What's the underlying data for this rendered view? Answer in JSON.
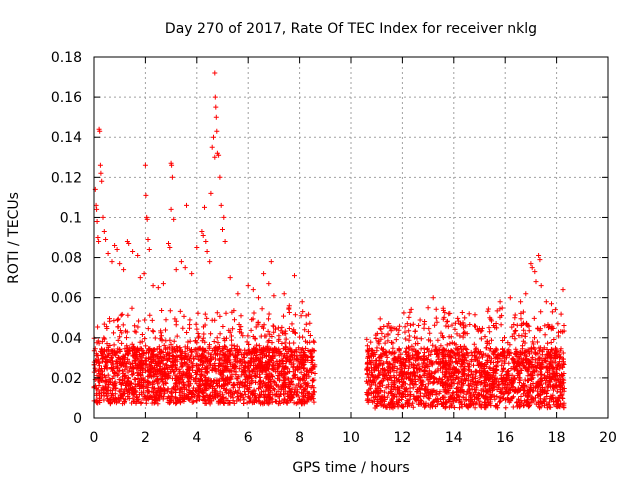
{
  "chart_data": {
    "type": "scatter",
    "title": "Day 270 of 2017, Rate Of TEC Index for receiver nklg",
    "xlabel": "GPS time / hours",
    "ylabel": "ROTI / TECUs",
    "xlim": [
      0,
      20
    ],
    "ylim": [
      0,
      0.18
    ],
    "xticks": [
      0,
      2,
      4,
      6,
      8,
      10,
      12,
      14,
      16,
      18,
      20
    ],
    "yticks": [
      0,
      0.02,
      0.04,
      0.06,
      0.08,
      0.1,
      0.12,
      0.14,
      0.16,
      0.18
    ],
    "xtick_labels": [
      "0",
      "2",
      "4",
      "6",
      "8",
      "10",
      "12",
      "14",
      "16",
      "18",
      "20"
    ],
    "ytick_labels": [
      "0",
      "0.02",
      "0.04",
      "0.06",
      "0.08",
      "0.1",
      "0.12",
      "0.14",
      "0.16",
      "0.18"
    ],
    "grid": true,
    "marker": "+",
    "series": [
      {
        "name": "ROTI",
        "color": "#ff0000",
        "segments": [
          {
            "x_start": 0.0,
            "x_end": 8.6,
            "typical_min": 0.007,
            "typical_max": 0.035
          },
          {
            "x_start": 10.6,
            "x_end": 18.3,
            "typical_min": 0.005,
            "typical_max": 0.035
          }
        ],
        "outliers": [
          {
            "x": 0.05,
            "y": 0.114
          },
          {
            "x": 0.08,
            "y": 0.106
          },
          {
            "x": 0.1,
            "y": 0.104
          },
          {
            "x": 0.12,
            "y": 0.098
          },
          {
            "x": 0.15,
            "y": 0.09
          },
          {
            "x": 0.18,
            "y": 0.088
          },
          {
            "x": 0.2,
            "y": 0.144
          },
          {
            "x": 0.22,
            "y": 0.143
          },
          {
            "x": 0.25,
            "y": 0.126
          },
          {
            "x": 0.27,
            "y": 0.122
          },
          {
            "x": 0.3,
            "y": 0.118
          },
          {
            "x": 0.35,
            "y": 0.1
          },
          {
            "x": 0.4,
            "y": 0.093
          },
          {
            "x": 0.45,
            "y": 0.089
          },
          {
            "x": 0.55,
            "y": 0.082
          },
          {
            "x": 0.7,
            "y": 0.078
          },
          {
            "x": 0.8,
            "y": 0.086
          },
          {
            "x": 0.9,
            "y": 0.084
          },
          {
            "x": 1.0,
            "y": 0.077
          },
          {
            "x": 1.15,
            "y": 0.074
          },
          {
            "x": 1.3,
            "y": 0.088
          },
          {
            "x": 1.35,
            "y": 0.087
          },
          {
            "x": 1.5,
            "y": 0.083
          },
          {
            "x": 1.7,
            "y": 0.081
          },
          {
            "x": 1.8,
            "y": 0.07
          },
          {
            "x": 1.95,
            "y": 0.072
          },
          {
            "x": 2.0,
            "y": 0.126
          },
          {
            "x": 2.02,
            "y": 0.111
          },
          {
            "x": 2.05,
            "y": 0.1
          },
          {
            "x": 2.07,
            "y": 0.099
          },
          {
            "x": 2.1,
            "y": 0.089
          },
          {
            "x": 2.15,
            "y": 0.084
          },
          {
            "x": 2.3,
            "y": 0.066
          },
          {
            "x": 2.5,
            "y": 0.065
          },
          {
            "x": 2.7,
            "y": 0.067
          },
          {
            "x": 2.9,
            "y": 0.087
          },
          {
            "x": 2.95,
            "y": 0.085
          },
          {
            "x": 3.0,
            "y": 0.127
          },
          {
            "x": 3.02,
            "y": 0.126
          },
          {
            "x": 3.05,
            "y": 0.12
          },
          {
            "x": 3.0,
            "y": 0.104
          },
          {
            "x": 3.1,
            "y": 0.099
          },
          {
            "x": 3.2,
            "y": 0.074
          },
          {
            "x": 3.4,
            "y": 0.078
          },
          {
            "x": 3.6,
            "y": 0.106
          },
          {
            "x": 3.55,
            "y": 0.075
          },
          {
            "x": 3.8,
            "y": 0.072
          },
          {
            "x": 4.0,
            "y": 0.085
          },
          {
            "x": 4.2,
            "y": 0.093
          },
          {
            "x": 4.25,
            "y": 0.091
          },
          {
            "x": 4.3,
            "y": 0.105
          },
          {
            "x": 4.35,
            "y": 0.088
          },
          {
            "x": 4.4,
            "y": 0.083
          },
          {
            "x": 4.5,
            "y": 0.078
          },
          {
            "x": 4.55,
            "y": 0.112
          },
          {
            "x": 4.6,
            "y": 0.135
          },
          {
            "x": 4.65,
            "y": 0.14
          },
          {
            "x": 4.7,
            "y": 0.172
          },
          {
            "x": 4.72,
            "y": 0.16
          },
          {
            "x": 4.74,
            "y": 0.155
          },
          {
            "x": 4.76,
            "y": 0.15
          },
          {
            "x": 4.78,
            "y": 0.143
          },
          {
            "x": 4.7,
            "y": 0.13
          },
          {
            "x": 4.8,
            "y": 0.132
          },
          {
            "x": 4.85,
            "y": 0.131
          },
          {
            "x": 4.9,
            "y": 0.12
          },
          {
            "x": 4.95,
            "y": 0.106
          },
          {
            "x": 5.0,
            "y": 0.094
          },
          {
            "x": 5.05,
            "y": 0.1
          },
          {
            "x": 5.1,
            "y": 0.088
          },
          {
            "x": 5.3,
            "y": 0.07
          },
          {
            "x": 5.6,
            "y": 0.062
          },
          {
            "x": 6.0,
            "y": 0.066
          },
          {
            "x": 6.2,
            "y": 0.064
          },
          {
            "x": 6.4,
            "y": 0.06
          },
          {
            "x": 6.6,
            "y": 0.072
          },
          {
            "x": 6.8,
            "y": 0.067
          },
          {
            "x": 6.9,
            "y": 0.078
          },
          {
            "x": 7.0,
            "y": 0.061
          },
          {
            "x": 7.4,
            "y": 0.062
          },
          {
            "x": 7.6,
            "y": 0.056
          },
          {
            "x": 7.8,
            "y": 0.071
          },
          {
            "x": 8.1,
            "y": 0.058
          },
          {
            "x": 8.2,
            "y": 0.044
          },
          {
            "x": 13.2,
            "y": 0.06
          },
          {
            "x": 13.0,
            "y": 0.055
          },
          {
            "x": 13.8,
            "y": 0.052
          },
          {
            "x": 14.6,
            "y": 0.052
          },
          {
            "x": 15.4,
            "y": 0.05
          },
          {
            "x": 15.8,
            "y": 0.058
          },
          {
            "x": 16.2,
            "y": 0.06
          },
          {
            "x": 16.6,
            "y": 0.058
          },
          {
            "x": 16.8,
            "y": 0.062
          },
          {
            "x": 17.0,
            "y": 0.077
          },
          {
            "x": 17.05,
            "y": 0.075
          },
          {
            "x": 17.15,
            "y": 0.073
          },
          {
            "x": 17.3,
            "y": 0.081
          },
          {
            "x": 17.35,
            "y": 0.079
          },
          {
            "x": 17.2,
            "y": 0.068
          },
          {
            "x": 17.4,
            "y": 0.066
          },
          {
            "x": 17.6,
            "y": 0.058
          },
          {
            "x": 17.8,
            "y": 0.057
          },
          {
            "x": 18.25,
            "y": 0.064
          }
        ]
      }
    ]
  }
}
